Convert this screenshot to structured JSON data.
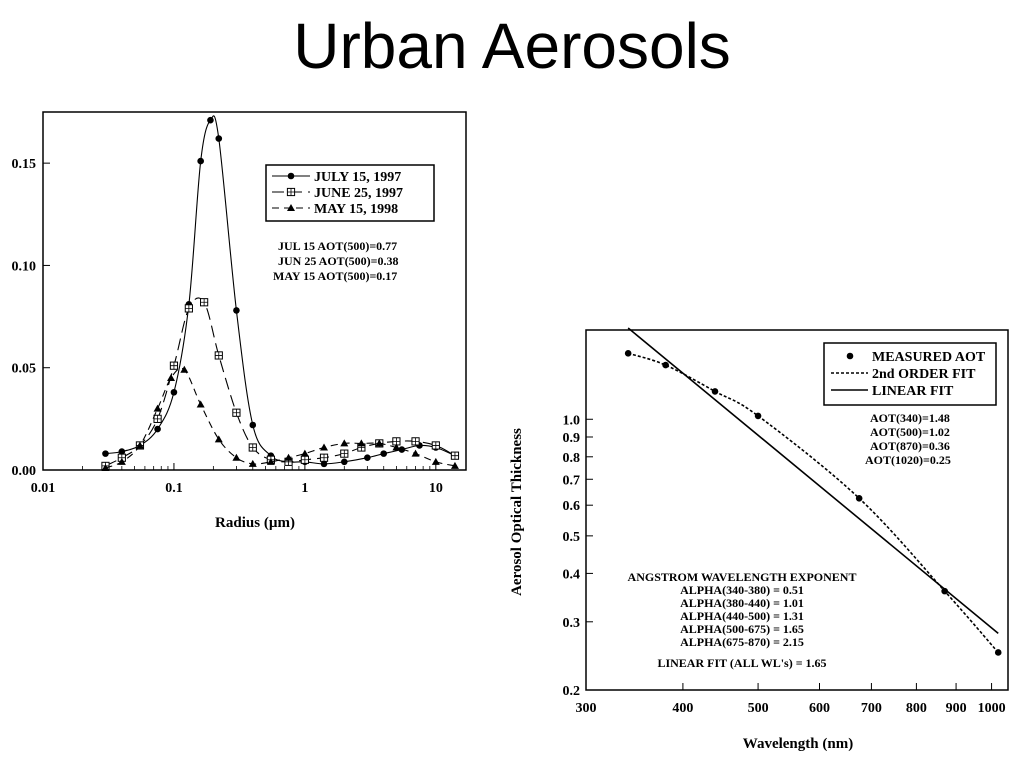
{
  "slide": {
    "title": "Urban Aerosols"
  },
  "chart_data": [
    {
      "type": "line",
      "xlabel": "Radius (µm)",
      "ylabel": "",
      "xscale": "log",
      "xlim": [
        0.01,
        17
      ],
      "ylim": [
        0.0,
        0.175
      ],
      "grid": false,
      "x_ticks": [
        {
          "value": 0.01,
          "label": "0.01"
        },
        {
          "value": 0.1,
          "label": "0.1"
        },
        {
          "value": 1,
          "label": "1"
        },
        {
          "value": 10,
          "label": "10"
        }
      ],
      "y_ticks": [
        {
          "value": 0.0,
          "label": "0.00"
        },
        {
          "value": 0.05,
          "label": "0.05"
        },
        {
          "value": 0.1,
          "label": "0.10"
        },
        {
          "value": 0.15,
          "label": "0.15"
        }
      ],
      "legend_position": "top-right",
      "series": [
        {
          "name": "JULY 15, 1997",
          "marker": "circle",
          "line_style": "solid",
          "x": [
            0.03,
            0.04,
            0.055,
            0.075,
            0.1,
            0.13,
            0.16,
            0.19,
            0.22,
            0.3,
            0.4,
            0.55,
            0.75,
            1.0,
            1.4,
            2.0,
            3.0,
            4.0,
            5.5,
            7.5,
            10.0,
            14.0
          ],
          "y": [
            0.008,
            0.009,
            0.012,
            0.02,
            0.038,
            0.081,
            0.151,
            0.171,
            0.162,
            0.078,
            0.022,
            0.007,
            0.004,
            0.004,
            0.003,
            0.004,
            0.006,
            0.008,
            0.01,
            0.012,
            0.011,
            0.007
          ]
        },
        {
          "name": "JUNE 25, 1997",
          "marker": "square",
          "line_style": "long-dash",
          "x": [
            0.03,
            0.04,
            0.055,
            0.075,
            0.1,
            0.13,
            0.17,
            0.22,
            0.3,
            0.4,
            0.55,
            0.75,
            1.0,
            1.4,
            2.0,
            2.7,
            3.7,
            5.0,
            7.0,
            10.0,
            14.0
          ],
          "y": [
            0.002,
            0.006,
            0.012,
            0.025,
            0.051,
            0.079,
            0.082,
            0.056,
            0.028,
            0.011,
            0.005,
            0.004,
            0.005,
            0.006,
            0.008,
            0.011,
            0.013,
            0.014,
            0.014,
            0.012,
            0.007
          ]
        },
        {
          "name": "MAY 15, 1998",
          "marker": "triangle",
          "line_style": "dashed",
          "x": [
            0.03,
            0.04,
            0.055,
            0.075,
            0.095,
            0.12,
            0.16,
            0.22,
            0.3,
            0.4,
            0.55,
            0.75,
            1.0,
            1.4,
            2.0,
            2.7,
            3.7,
            5.0,
            7.0,
            10.0,
            14.0
          ],
          "y": [
            0.001,
            0.004,
            0.012,
            0.03,
            0.045,
            0.049,
            0.032,
            0.015,
            0.006,
            0.003,
            0.004,
            0.006,
            0.008,
            0.011,
            0.013,
            0.013,
            0.013,
            0.011,
            0.008,
            0.004,
            0.002
          ]
        }
      ],
      "annotations": [
        "JUL 15  AOT(500)=0.77",
        "JUN 25  AOT(500)=0.38",
        "MAY 15  AOT(500)=0.17"
      ]
    },
    {
      "type": "line",
      "xlabel": "Wavelength (nm)",
      "ylabel": "Aerosol Optical Thickness",
      "xscale": "log",
      "yscale": "log",
      "xlim": [
        300,
        1050
      ],
      "ylim": [
        0.2,
        1.7
      ],
      "grid": false,
      "x_ticks": [
        {
          "value": 300,
          "label": "300"
        },
        {
          "value": 400,
          "label": "400"
        },
        {
          "value": 500,
          "label": "500"
        },
        {
          "value": 600,
          "label": "600"
        },
        {
          "value": 700,
          "label": "700"
        },
        {
          "value": 800,
          "label": "800"
        },
        {
          "value": 900,
          "label": "900"
        },
        {
          "value": 1000,
          "label": "1000"
        }
      ],
      "y_ticks": [
        {
          "value": 0.2,
          "label": "0.2"
        },
        {
          "value": 0.3,
          "label": "0.3"
        },
        {
          "value": 0.4,
          "label": "0.4"
        },
        {
          "value": 0.5,
          "label": "0.5"
        },
        {
          "value": 0.6,
          "label": "0.6"
        },
        {
          "value": 0.7,
          "label": "0.7"
        },
        {
          "value": 0.8,
          "label": "0.8"
        },
        {
          "value": 0.9,
          "label": "0.9"
        },
        {
          "value": 1.0,
          "label": "1.0"
        }
      ],
      "legend_position": "top-right",
      "series": [
        {
          "name": "MEASURED AOT",
          "marker": "circle",
          "line_style": "none",
          "x": [
            340,
            380,
            440,
            500,
            675,
            870,
            1020
          ],
          "y": [
            1.48,
            1.38,
            1.18,
            1.02,
            0.625,
            0.36,
            0.25
          ]
        },
        {
          "name": "2nd ORDER FIT",
          "marker": "none",
          "line_style": "dotted",
          "x": [
            340,
            380,
            440,
            500,
            675,
            870,
            1020
          ],
          "y": [
            1.48,
            1.38,
            1.18,
            1.02,
            0.625,
            0.36,
            0.25
          ]
        },
        {
          "name": "LINEAR FIT",
          "marker": "none",
          "line_style": "solid",
          "x": [
            340,
            1020
          ],
          "y": [
            1.72,
            0.28
          ]
        }
      ],
      "annotations": [
        "AOT(340)=1.48",
        "AOT(500)=1.02",
        "AOT(870)=0.36",
        "AOT(1020)=0.25"
      ],
      "angstrom": {
        "heading": "ANGSTROM WAVELENGTH EXPONENT",
        "lines": [
          "ALPHA(340-380) = 0.51",
          "ALPHA(380-440) = 1.01",
          "ALPHA(440-500) = 1.31",
          "ALPHA(500-675) = 1.65",
          "ALPHA(675-870) = 2.15"
        ],
        "linear_fit_note": "LINEAR FIT (ALL WL's) = 1.65"
      }
    }
  ]
}
